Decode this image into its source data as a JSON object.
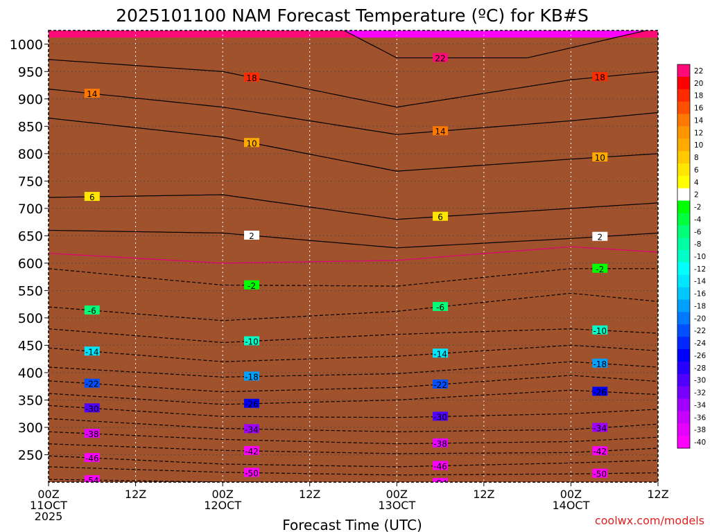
{
  "chart_data": {
    "type": "heatmap",
    "title": "2025101100 NAM Forecast Temperature (ºC) for KB#S",
    "xlabel": "Forecast Time (UTC)",
    "ylabel": "",
    "credit": "coolwx.com/models",
    "x_unit_hours": [
      0,
      84
    ],
    "y_range_hpa": [
      1025,
      200
    ],
    "y_ticks": [
      250,
      300,
      350,
      400,
      450,
      500,
      550,
      600,
      650,
      700,
      750,
      800,
      850,
      900,
      950,
      1000
    ],
    "x_ticks": [
      {
        "hour": 0,
        "line1": "00Z",
        "line2": "11OCT",
        "line3": "2025"
      },
      {
        "hour": 12,
        "line1": "12Z",
        "line2": "",
        "line3": ""
      },
      {
        "hour": 24,
        "line1": "00Z",
        "line2": "12OCT",
        "line3": ""
      },
      {
        "hour": 36,
        "line1": "12Z",
        "line2": "",
        "line3": ""
      },
      {
        "hour": 48,
        "line1": "00Z",
        "line2": "13OCT",
        "line3": ""
      },
      {
        "hour": 60,
        "line1": "12Z",
        "line2": "",
        "line3": ""
      },
      {
        "hour": 72,
        "line1": "00Z",
        "line2": "14OCT",
        "line3": ""
      },
      {
        "hour": 84,
        "line1": "12Z",
        "line2": "",
        "line3": ""
      }
    ],
    "colorbar": [
      {
        "label": "22",
        "color": "#ff0a78"
      },
      {
        "label": "20",
        "color": "#ff0000"
      },
      {
        "label": "18",
        "color": "#ff2a00"
      },
      {
        "label": "16",
        "color": "#ff5000"
      },
      {
        "label": "14",
        "color": "#ff7800"
      },
      {
        "label": "12",
        "color": "#ff9600"
      },
      {
        "label": "10",
        "color": "#ffaa00"
      },
      {
        "label": "8",
        "color": "#ffc800"
      },
      {
        "label": "6",
        "color": "#ffe600"
      },
      {
        "label": "4",
        "color": "#ffff00"
      },
      {
        "label": "2",
        "color": "#ffffff"
      },
      {
        "label": "-2",
        "color": "#00ff00"
      },
      {
        "label": "-4",
        "color": "#00ff3c"
      },
      {
        "label": "-6",
        "color": "#00ff78"
      },
      {
        "label": "-8",
        "color": "#00ffa0"
      },
      {
        "label": "-10",
        "color": "#00ffc8"
      },
      {
        "label": "-12",
        "color": "#00ffff"
      },
      {
        "label": "-14",
        "color": "#00e6ff"
      },
      {
        "label": "-16",
        "color": "#00c8ff"
      },
      {
        "label": "-18",
        "color": "#00a0ff"
      },
      {
        "label": "-20",
        "color": "#0078ff"
      },
      {
        "label": "-22",
        "color": "#0050ff"
      },
      {
        "label": "-24",
        "color": "#0028ff"
      },
      {
        "label": "-26",
        "color": "#0000ff"
      },
      {
        "label": "-28",
        "color": "#2800ff"
      },
      {
        "label": "-30",
        "color": "#5000ff"
      },
      {
        "label": "-32",
        "color": "#7800ff"
      },
      {
        "label": "-34",
        "color": "#a000ff"
      },
      {
        "label": "-36",
        "color": "#c800ff"
      },
      {
        "label": "-38",
        "color": "#e600ff"
      },
      {
        "label": "-40",
        "color": "#ff00ff"
      }
    ],
    "isotherms": [
      {
        "temp": -54,
        "p": [
          [
            0,
            205
          ],
          [
            24,
            200
          ],
          [
            48,
            199
          ],
          [
            72,
            197
          ],
          [
            84,
            196
          ]
        ]
      },
      {
        "temp": -50,
        "p": [
          [
            0,
            228
          ],
          [
            24,
            218
          ],
          [
            48,
            213
          ],
          [
            72,
            215
          ],
          [
            84,
            217
          ]
        ]
      },
      {
        "temp": -46,
        "p": [
          [
            0,
            248
          ],
          [
            24,
            233
          ],
          [
            48,
            228
          ],
          [
            72,
            235
          ],
          [
            84,
            240
          ]
        ]
      },
      {
        "temp": -42,
        "p": [
          [
            0,
            270
          ],
          [
            24,
            258
          ],
          [
            48,
            252
          ],
          [
            72,
            254
          ],
          [
            84,
            262
          ]
        ]
      },
      {
        "temp": -38,
        "p": [
          [
            0,
            292
          ],
          [
            24,
            278
          ],
          [
            48,
            270
          ],
          [
            72,
            274
          ],
          [
            84,
            282
          ]
        ]
      },
      {
        "temp": -34,
        "p": [
          [
            0,
            316
          ],
          [
            24,
            298
          ],
          [
            48,
            292
          ],
          [
            72,
            296
          ],
          [
            84,
            306
          ]
        ]
      },
      {
        "temp": -30,
        "p": [
          [
            0,
            340
          ],
          [
            24,
            320
          ],
          [
            48,
            318
          ],
          [
            72,
            325
          ],
          [
            84,
            333
          ]
        ]
      },
      {
        "temp": -26,
        "p": [
          [
            0,
            362
          ],
          [
            24,
            342
          ],
          [
            48,
            350
          ],
          [
            72,
            368
          ],
          [
            84,
            360
          ]
        ]
      },
      {
        "temp": -22,
        "p": [
          [
            0,
            385
          ],
          [
            24,
            365
          ],
          [
            48,
            373
          ],
          [
            72,
            395
          ],
          [
            84,
            384
          ]
        ]
      },
      {
        "temp": -18,
        "p": [
          [
            0,
            410
          ],
          [
            24,
            392
          ],
          [
            48,
            398
          ],
          [
            72,
            420
          ],
          [
            84,
            410
          ]
        ]
      },
      {
        "temp": -14,
        "p": [
          [
            0,
            445
          ],
          [
            24,
            420
          ],
          [
            48,
            430
          ],
          [
            72,
            450
          ],
          [
            84,
            440
          ]
        ]
      },
      {
        "temp": -10,
        "p": [
          [
            0,
            480
          ],
          [
            24,
            455
          ],
          [
            48,
            470
          ],
          [
            72,
            480
          ],
          [
            84,
            472
          ]
        ]
      },
      {
        "temp": -6,
        "p": [
          [
            0,
            520
          ],
          [
            24,
            495
          ],
          [
            48,
            512
          ],
          [
            72,
            545
          ],
          [
            84,
            530
          ]
        ]
      },
      {
        "temp": -2,
        "p": [
          [
            0,
            590
          ],
          [
            24,
            560
          ],
          [
            48,
            558
          ],
          [
            72,
            590
          ],
          [
            84,
            590
          ]
        ]
      },
      {
        "temp": 0,
        "p": [
          [
            0,
            618
          ],
          [
            24,
            600
          ],
          [
            48,
            605
          ],
          [
            72,
            630
          ],
          [
            84,
            620
          ]
        ]
      },
      {
        "temp": 2,
        "p": [
          [
            0,
            660
          ],
          [
            24,
            655
          ],
          [
            48,
            628
          ],
          [
            72,
            645
          ],
          [
            84,
            655
          ]
        ]
      },
      {
        "temp": 6,
        "p": [
          [
            0,
            720
          ],
          [
            24,
            725
          ],
          [
            48,
            680
          ],
          [
            72,
            700
          ],
          [
            84,
            710
          ]
        ]
      },
      {
        "temp": 10,
        "p": [
          [
            0,
            865
          ],
          [
            24,
            830
          ],
          [
            48,
            768
          ],
          [
            72,
            790
          ],
          [
            84,
            800
          ]
        ]
      },
      {
        "temp": 14,
        "p": [
          [
            0,
            918
          ],
          [
            24,
            885
          ],
          [
            48,
            835
          ],
          [
            72,
            860
          ],
          [
            84,
            875
          ]
        ]
      },
      {
        "temp": 18,
        "p": [
          [
            0,
            972
          ],
          [
            24,
            950
          ],
          [
            48,
            885
          ],
          [
            72,
            935
          ],
          [
            84,
            950
          ]
        ]
      },
      {
        "temp": 22,
        "p": [
          [
            0,
            1030
          ],
          [
            40,
            1030
          ],
          [
            48,
            975
          ],
          [
            66,
            975
          ],
          [
            84,
            1030
          ]
        ]
      }
    ]
  }
}
